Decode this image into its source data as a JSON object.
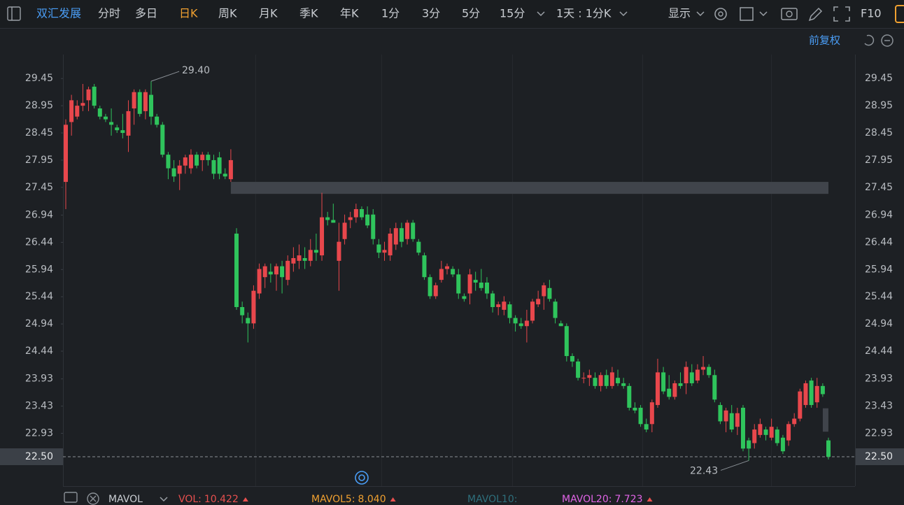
{
  "toolbar": {
    "stock_name": "双汇发展",
    "tabs": [
      "分时",
      "多日",
      "日K",
      "周K",
      "月K",
      "季K",
      "年K",
      "1分",
      "3分",
      "5分",
      "15分"
    ],
    "active_tab": 2,
    "range": "1天 : 1分K",
    "display": "显示",
    "f10": "F10"
  },
  "adjust": "前复权",
  "chart_data": {
    "type": "candlestick",
    "categories": [
      null,
      null,
      null,
      null,
      null,
      null,
      null,
      null,
      null,
      null,
      null,
      null,
      null,
      null,
      null,
      null,
      null,
      null,
      null,
      null,
      null,
      null,
      null,
      null,
      null,
      null,
      null,
      null,
      null,
      null,
      null,
      null,
      null,
      null,
      null,
      null,
      null,
      null,
      null,
      null,
      null,
      null,
      null,
      null,
      null,
      null,
      null,
      null,
      null,
      null,
      null,
      null,
      null,
      null,
      null,
      null,
      null,
      null,
      null,
      null,
      null,
      null,
      null,
      null,
      null,
      null,
      null,
      null,
      null,
      null,
      null,
      null,
      null,
      null,
      null,
      null,
      null,
      null,
      null,
      null,
      null,
      null,
      null,
      null,
      null,
      null,
      null,
      null,
      null,
      null,
      null,
      null,
      null,
      null,
      null,
      null,
      null,
      null,
      null,
      null,
      null,
      null,
      null,
      null,
      null,
      null,
      null,
      null,
      null,
      null,
      null,
      null,
      null,
      null,
      null,
      null,
      null,
      null,
      null,
      null,
      null,
      null,
      null,
      null,
      null,
      null,
      null,
      null,
      null,
      null,
      null,
      null,
      null,
      null,
      null
    ],
    "candles": [
      {
        "open": 27.55,
        "high": 28.7,
        "low": 27.05,
        "close": 28.6
      },
      {
        "open": 28.65,
        "high": 29.15,
        "low": 28.4,
        "close": 29.05
      },
      {
        "open": 28.75,
        "high": 29.05,
        "low": 28.7,
        "close": 28.95
      },
      {
        "open": 28.95,
        "high": 29.35,
        "low": 28.85,
        "close": 29.0
      },
      {
        "open": 29.05,
        "high": 29.3,
        "low": 28.85,
        "close": 29.25
      },
      {
        "open": 29.3,
        "high": 29.35,
        "low": 28.9,
        "close": 28.95
      },
      {
        "open": 28.9,
        "high": 28.95,
        "low": 28.7,
        "close": 28.75
      },
      {
        "open": 28.75,
        "high": 28.8,
        "low": 28.65,
        "close": 28.7
      },
      {
        "open": 28.65,
        "high": 28.9,
        "low": 28.4,
        "close": 28.6
      },
      {
        "open": 28.55,
        "high": 28.6,
        "low": 28.45,
        "close": 28.5
      },
      {
        "open": 28.5,
        "high": 28.8,
        "low": 28.35,
        "close": 28.45
      },
      {
        "open": 28.4,
        "high": 29.05,
        "low": 28.1,
        "close": 28.85
      },
      {
        "open": 28.9,
        "high": 29.25,
        "low": 28.6,
        "close": 29.2
      },
      {
        "open": 29.2,
        "high": 29.25,
        "low": 28.75,
        "close": 28.8
      },
      {
        "open": 28.85,
        "high": 29.25,
        "low": 28.7,
        "close": 29.2
      },
      {
        "open": 29.15,
        "high": 29.4,
        "low": 28.6,
        "close": 28.75
      },
      {
        "open": 28.75,
        "high": 28.8,
        "low": 28.55,
        "close": 28.6
      },
      {
        "open": 28.6,
        "high": 28.65,
        "low": 28.0,
        "close": 28.05
      },
      {
        "open": 28.05,
        "high": 28.1,
        "low": 27.6,
        "close": 27.8
      },
      {
        "open": 27.8,
        "high": 27.95,
        "low": 27.55,
        "close": 27.65
      },
      {
        "open": 27.7,
        "high": 27.95,
        "low": 27.4,
        "close": 27.85
      },
      {
        "open": 27.85,
        "high": 28.05,
        "low": 27.7,
        "close": 28.0
      },
      {
        "open": 27.8,
        "high": 28.15,
        "low": 27.7,
        "close": 28.05
      },
      {
        "open": 28.05,
        "high": 28.1,
        "low": 27.8,
        "close": 27.85
      },
      {
        "open": 27.95,
        "high": 28.1,
        "low": 27.75,
        "close": 28.05
      },
      {
        "open": 28.05,
        "high": 28.1,
        "low": 27.85,
        "close": 27.95
      },
      {
        "open": 27.95,
        "high": 28.05,
        "low": 27.6,
        "close": 27.7
      },
      {
        "open": 28.0,
        "high": 28.1,
        "low": 27.6,
        "close": 27.7
      },
      {
        "open": 27.7,
        "high": 27.8,
        "low": 27.6,
        "close": 27.65
      },
      {
        "open": 27.6,
        "high": 28.15,
        "low": 27.55,
        "close": 27.95
      },
      {
        "open": 26.6,
        "high": 26.7,
        "low": 25.2,
        "close": 25.25
      },
      {
        "open": 25.25,
        "high": 25.35,
        "low": 24.95,
        "close": 25.1
      },
      {
        "open": 25.05,
        "high": 25.15,
        "low": 24.6,
        "close": 24.95
      },
      {
        "open": 24.95,
        "high": 25.65,
        "low": 24.85,
        "close": 25.55
      },
      {
        "open": 25.5,
        "high": 26.05,
        "low": 25.4,
        "close": 25.95
      },
      {
        "open": 25.8,
        "high": 26.05,
        "low": 25.6,
        "close": 26.0
      },
      {
        "open": 25.9,
        "high": 26.05,
        "low": 25.7,
        "close": 25.85
      },
      {
        "open": 25.85,
        "high": 26.05,
        "low": 25.55,
        "close": 26.0
      },
      {
        "open": 26.0,
        "high": 26.1,
        "low": 25.5,
        "close": 25.8
      },
      {
        "open": 25.75,
        "high": 26.2,
        "low": 25.65,
        "close": 26.1
      },
      {
        "open": 26.05,
        "high": 26.35,
        "low": 25.9,
        "close": 26.15
      },
      {
        "open": 26.1,
        "high": 26.4,
        "low": 25.95,
        "close": 26.2
      },
      {
        "open": 26.15,
        "high": 26.35,
        "low": 25.95,
        "close": 26.1
      },
      {
        "open": 26.1,
        "high": 26.5,
        "low": 26.0,
        "close": 26.3
      },
      {
        "open": 26.3,
        "high": 26.6,
        "low": 26.1,
        "close": 26.25
      },
      {
        "open": 26.2,
        "high": 27.35,
        "low": 26.1,
        "close": 26.9
      },
      {
        "open": 26.9,
        "high": 27.0,
        "low": 26.75,
        "close": 26.85
      },
      {
        "open": 26.85,
        "high": 27.15,
        "low": 26.8,
        "close": 26.8
      },
      {
        "open": 26.1,
        "high": 26.8,
        "low": 25.55,
        "close": 26.45
      },
      {
        "open": 26.5,
        "high": 26.95,
        "low": 26.4,
        "close": 26.8
      },
      {
        "open": 26.85,
        "high": 27.0,
        "low": 26.7,
        "close": 26.9
      },
      {
        "open": 26.9,
        "high": 27.15,
        "low": 26.8,
        "close": 27.05
      },
      {
        "open": 27.05,
        "high": 27.1,
        "low": 26.85,
        "close": 26.9
      },
      {
        "open": 26.95,
        "high": 27.1,
        "low": 26.7,
        "close": 26.75
      },
      {
        "open": 26.95,
        "high": 27.05,
        "low": 26.4,
        "close": 26.5
      },
      {
        "open": 26.4,
        "high": 26.5,
        "low": 26.15,
        "close": 26.25
      },
      {
        "open": 26.25,
        "high": 26.45,
        "low": 26.1,
        "close": 26.3
      },
      {
        "open": 26.2,
        "high": 26.7,
        "low": 26.1,
        "close": 26.6
      },
      {
        "open": 26.4,
        "high": 26.8,
        "low": 26.3,
        "close": 26.7
      },
      {
        "open": 26.7,
        "high": 26.8,
        "low": 26.35,
        "close": 26.45
      },
      {
        "open": 26.5,
        "high": 26.85,
        "low": 26.4,
        "close": 26.8
      },
      {
        "open": 26.8,
        "high": 26.85,
        "low": 26.45,
        "close": 26.5
      },
      {
        "open": 26.45,
        "high": 26.5,
        "low": 26.2,
        "close": 26.25
      },
      {
        "open": 26.2,
        "high": 26.25,
        "low": 25.75,
        "close": 25.8
      },
      {
        "open": 25.8,
        "high": 25.85,
        "low": 25.4,
        "close": 25.45
      },
      {
        "open": 25.45,
        "high": 25.7,
        "low": 25.4,
        "close": 25.65
      },
      {
        "open": 25.75,
        "high": 26.1,
        "low": 25.7,
        "close": 25.95
      },
      {
        "open": 25.95,
        "high": 26.05,
        "low": 25.85,
        "close": 26.0
      },
      {
        "open": 25.95,
        "high": 26.0,
        "low": 25.8,
        "close": 25.85
      },
      {
        "open": 25.85,
        "high": 25.95,
        "low": 25.4,
        "close": 25.5
      },
      {
        "open": 25.45,
        "high": 25.5,
        "low": 25.35,
        "close": 25.4
      },
      {
        "open": 25.5,
        "high": 25.95,
        "low": 25.3,
        "close": 25.85
      },
      {
        "open": 25.75,
        "high": 25.9,
        "low": 25.55,
        "close": 25.7
      },
      {
        "open": 25.7,
        "high": 25.95,
        "low": 25.55,
        "close": 25.6
      },
      {
        "open": 25.7,
        "high": 25.8,
        "low": 25.4,
        "close": 25.5
      },
      {
        "open": 25.5,
        "high": 25.55,
        "low": 25.15,
        "close": 25.25
      },
      {
        "open": 25.25,
        "high": 25.35,
        "low": 25.1,
        "close": 25.3
      },
      {
        "open": 25.2,
        "high": 25.45,
        "low": 25.1,
        "close": 25.35
      },
      {
        "open": 25.3,
        "high": 25.35,
        "low": 24.95,
        "close": 25.05
      },
      {
        "open": 25.05,
        "high": 25.1,
        "low": 24.8,
        "close": 24.95
      },
      {
        "open": 24.95,
        "high": 25.05,
        "low": 24.85,
        "close": 24.9
      },
      {
        "open": 24.9,
        "high": 25.2,
        "low": 24.6,
        "close": 25.0
      },
      {
        "open": 25.0,
        "high": 25.4,
        "low": 24.95,
        "close": 25.35
      },
      {
        "open": 25.3,
        "high": 25.55,
        "low": 25.25,
        "close": 25.4
      },
      {
        "open": 25.45,
        "high": 25.7,
        "low": 25.2,
        "close": 25.65
      },
      {
        "open": 25.6,
        "high": 25.75,
        "low": 25.35,
        "close": 25.4
      },
      {
        "open": 25.35,
        "high": 25.4,
        "low": 24.95,
        "close": 25.05
      },
      {
        "open": 24.95,
        "high": 25.0,
        "low": 24.9,
        "close": 24.9
      },
      {
        "open": 24.9,
        "high": 24.95,
        "low": 24.25,
        "close": 24.35
      },
      {
        "open": 24.35,
        "high": 24.4,
        "low": 24.15,
        "close": 24.25
      },
      {
        "open": 24.25,
        "high": 24.3,
        "low": 23.9,
        "close": 23.95
      },
      {
        "open": 23.95,
        "high": 24.05,
        "low": 23.85,
        "close": 23.95
      },
      {
        "open": 23.95,
        "high": 24.1,
        "low": 23.8,
        "close": 24.0
      },
      {
        "open": 23.95,
        "high": 24.05,
        "low": 23.75,
        "close": 23.8
      },
      {
        "open": 23.8,
        "high": 24.05,
        "low": 23.7,
        "close": 24.0
      },
      {
        "open": 24.0,
        "high": 24.1,
        "low": 23.75,
        "close": 23.8
      },
      {
        "open": 23.8,
        "high": 24.15,
        "low": 23.75,
        "close": 24.05
      },
      {
        "open": 23.95,
        "high": 24.1,
        "low": 23.8,
        "close": 23.85
      },
      {
        "open": 23.85,
        "high": 23.95,
        "low": 23.75,
        "close": 23.8
      },
      {
        "open": 23.8,
        "high": 23.85,
        "low": 23.35,
        "close": 23.4
      },
      {
        "open": 23.4,
        "high": 23.5,
        "low": 23.3,
        "close": 23.35
      },
      {
        "open": 23.4,
        "high": 23.45,
        "low": 23.05,
        "close": 23.1
      },
      {
        "open": 23.1,
        "high": 23.2,
        "low": 22.95,
        "close": 23.0
      },
      {
        "open": 23.1,
        "high": 23.55,
        "low": 22.95,
        "close": 23.5
      },
      {
        "open": 23.45,
        "high": 24.3,
        "low": 23.4,
        "close": 24.05
      },
      {
        "open": 24.05,
        "high": 24.15,
        "low": 23.65,
        "close": 23.7
      },
      {
        "open": 23.75,
        "high": 24.0,
        "low": 23.55,
        "close": 23.6
      },
      {
        "open": 23.6,
        "high": 23.9,
        "low": 23.55,
        "close": 23.85
      },
      {
        "open": 23.85,
        "high": 24.05,
        "low": 23.75,
        "close": 23.8
      },
      {
        "open": 23.85,
        "high": 24.25,
        "low": 23.65,
        "close": 24.15
      },
      {
        "open": 24.05,
        "high": 24.2,
        "low": 23.8,
        "close": 23.85
      },
      {
        "open": 23.9,
        "high": 24.2,
        "low": 23.85,
        "close": 24.1
      },
      {
        "open": 24.1,
        "high": 24.35,
        "low": 24.0,
        "close": 24.15
      },
      {
        "open": 24.15,
        "high": 24.2,
        "low": 23.95,
        "close": 24.0
      },
      {
        "open": 24.0,
        "high": 24.1,
        "low": 23.5,
        "close": 23.55
      },
      {
        "open": 23.45,
        "high": 23.5,
        "low": 23.1,
        "close": 23.15
      },
      {
        "open": 23.15,
        "high": 23.4,
        "low": 22.95,
        "close": 23.35
      },
      {
        "open": 23.3,
        "high": 23.45,
        "low": 22.95,
        "close": 23.0
      },
      {
        "open": 23.05,
        "high": 23.4,
        "low": 22.9,
        "close": 23.3
      },
      {
        "open": 23.4,
        "high": 23.45,
        "low": 22.6,
        "close": 22.65
      },
      {
        "open": 22.8,
        "high": 22.85,
        "low": 22.43,
        "close": 22.65
      },
      {
        "open": 22.75,
        "high": 23.1,
        "low": 22.65,
        "close": 23.0
      },
      {
        "open": 22.9,
        "high": 23.2,
        "low": 22.85,
        "close": 23.1
      },
      {
        "open": 23.0,
        "high": 23.05,
        "low": 22.8,
        "close": 22.9
      },
      {
        "open": 22.85,
        "high": 23.2,
        "low": 22.8,
        "close": 23.05
      },
      {
        "open": 23.0,
        "high": 23.05,
        "low": 22.7,
        "close": 22.75
      },
      {
        "open": 22.85,
        "high": 22.9,
        "low": 22.55,
        "close": 22.6
      },
      {
        "open": 22.8,
        "high": 23.15,
        "low": 22.7,
        "close": 23.1
      },
      {
        "open": 23.1,
        "high": 23.3,
        "low": 23.05,
        "close": 23.2
      },
      {
        "open": 23.2,
        "high": 23.75,
        "low": 23.15,
        "close": 23.7
      },
      {
        "open": 23.45,
        "high": 23.9,
        "low": 23.4,
        "close": 23.85
      },
      {
        "open": 23.9,
        "high": 23.95,
        "low": 23.4,
        "close": 23.45
      },
      {
        "open": 23.5,
        "high": 23.95,
        "low": 23.4,
        "close": 23.8
      },
      {
        "open": 23.8,
        "high": 23.85,
        "low": 23.6,
        "close": 23.65
      },
      {
        "open": 22.8,
        "high": 22.85,
        "low": 22.45,
        "close": 22.5
      }
    ],
    "up_color": "#e8474c",
    "down_color": "#2fc45c",
    "ylim": [
      21.96,
      29.89
    ],
    "yticks": [
      29.45,
      28.95,
      28.45,
      27.95,
      27.45,
      26.94,
      26.44,
      25.94,
      25.44,
      24.94,
      24.44,
      23.93,
      23.43,
      22.93
    ],
    "price_line": {
      "value": 22.5,
      "label": "22.50"
    },
    "max_annotation": {
      "value": 29.4,
      "label": "29.40"
    },
    "min_annotation": 22.43,
    "gaps": [
      {
        "low": 27.33,
        "high": 27.55
      },
      {
        "low": 22.96,
        "high": 23.39
      }
    ],
    "gap_color": "#40444b"
  },
  "indicators": {
    "name": "MAVOL",
    "items": [
      {
        "name": "VOL:",
        "value": 10.422,
        "color": "#e8504f"
      },
      {
        "name": "MAVOL5:",
        "value": {
          "value": 8.04,
          "label": "8.040"
        },
        "color": "#f0a030"
      },
      {
        "name": "MAVOL10:",
        "color": "#2e6f7c"
      },
      {
        "name": "MAVOL20:",
        "value": 7.723,
        "color": "#e064e6"
      }
    ]
  }
}
